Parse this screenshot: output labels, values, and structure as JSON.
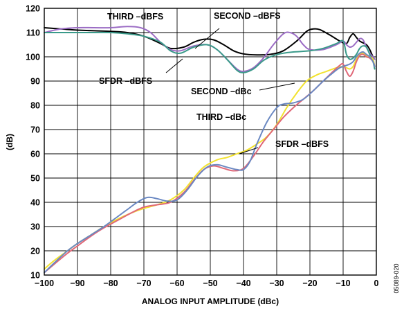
{
  "chart_data": {
    "type": "line",
    "xlabel": "ANALOG INPUT AMPLITUDE (dBc)",
    "ylabel": "(dB)",
    "xlim": [
      -100,
      0
    ],
    "ylim": [
      10,
      120
    ],
    "xticks": [
      "−100",
      "−90",
      "−80",
      "−70",
      "−60",
      "−50",
      "−40",
      "−30",
      "−20",
      "−10",
      "0"
    ],
    "yticks": [
      "10",
      "20",
      "30",
      "40",
      "50",
      "60",
      "70",
      "80",
      "90",
      "100",
      "110",
      "120"
    ],
    "grid": true,
    "figure_id": "05089-020",
    "series": [
      {
        "key": "second_dbfs",
        "color": "#000000",
        "points": [
          [
            -100,
            112
          ],
          [
            -95,
            111.5
          ],
          [
            -90,
            111
          ],
          [
            -80,
            110.5
          ],
          [
            -75,
            110
          ],
          [
            -70,
            108.5
          ],
          [
            -65,
            105.5
          ],
          [
            -62,
            103.5
          ],
          [
            -58,
            104
          ],
          [
            -55,
            106
          ],
          [
            -52,
            107.2
          ],
          [
            -49,
            107
          ],
          [
            -46,
            105
          ],
          [
            -43,
            102.5
          ],
          [
            -40,
            101.2
          ],
          [
            -36,
            100.8
          ],
          [
            -32,
            101
          ],
          [
            -28,
            102.5
          ],
          [
            -24,
            106.5
          ],
          [
            -21,
            110.5
          ],
          [
            -19,
            111.5
          ],
          [
            -17,
            111.2
          ],
          [
            -14,
            109
          ],
          [
            -11,
            106.5
          ],
          [
            -9,
            105.5
          ],
          [
            -8,
            108
          ],
          [
            -7,
            109.5
          ],
          [
            -6,
            108
          ],
          [
            -5,
            106.5
          ],
          [
            -3,
            105
          ],
          [
            -2,
            103
          ],
          [
            -1,
            100
          ],
          [
            -0.5,
            99
          ]
        ]
      },
      {
        "key": "third_dbfs",
        "color": "#9b6cc4",
        "points": [
          [
            -100,
            110
          ],
          [
            -95,
            111.5
          ],
          [
            -90,
            112
          ],
          [
            -85,
            112
          ],
          [
            -80,
            112
          ],
          [
            -75,
            112.5
          ],
          [
            -71,
            112
          ],
          [
            -68,
            110
          ],
          [
            -65,
            106
          ],
          [
            -62,
            103
          ],
          [
            -59,
            102.5
          ],
          [
            -55,
            104.5
          ],
          [
            -51,
            105
          ],
          [
            -48,
            103
          ],
          [
            -45,
            99
          ],
          [
            -42,
            95
          ],
          [
            -40,
            94
          ],
          [
            -37,
            95.5
          ],
          [
            -34,
            99.5
          ],
          [
            -31,
            105
          ],
          [
            -28,
            109.5
          ],
          [
            -26,
            110
          ],
          [
            -24,
            108.5
          ],
          [
            -22,
            105
          ],
          [
            -20,
            103
          ],
          [
            -16,
            103
          ],
          [
            -12,
            105
          ],
          [
            -10,
            106.5
          ],
          [
            -9,
            105
          ],
          [
            -8,
            104
          ],
          [
            -7,
            104.5
          ],
          [
            -6,
            106
          ],
          [
            -5,
            107.5
          ],
          [
            -4,
            107
          ],
          [
            -3,
            104
          ],
          [
            -2,
            101.5
          ],
          [
            -1,
            100
          ],
          [
            -0.5,
            99
          ]
        ]
      },
      {
        "key": "sfdr_dbfs",
        "color": "#3a9a8a",
        "points": [
          [
            -100,
            110
          ],
          [
            -95,
            110
          ],
          [
            -90,
            110
          ],
          [
            -85,
            110
          ],
          [
            -80,
            110
          ],
          [
            -75,
            109.5
          ],
          [
            -70,
            108.5
          ],
          [
            -65,
            106
          ],
          [
            -62,
            102.5
          ],
          [
            -59,
            101.5
          ],
          [
            -55,
            104
          ],
          [
            -51,
            105
          ],
          [
            -48,
            103
          ],
          [
            -45,
            99
          ],
          [
            -42,
            94.5
          ],
          [
            -40,
            93.5
          ],
          [
            -37,
            95
          ],
          [
            -34,
            98.5
          ],
          [
            -31,
            100.5
          ],
          [
            -28,
            101.5
          ],
          [
            -25,
            102
          ],
          [
            -20,
            102.5
          ],
          [
            -16,
            103.5
          ],
          [
            -12,
            105.5
          ],
          [
            -10,
            106.5
          ],
          [
            -9,
            101
          ],
          [
            -8,
            99
          ],
          [
            -7,
            99.5
          ],
          [
            -6,
            101
          ],
          [
            -5,
            103.5
          ],
          [
            -4,
            104.5
          ],
          [
            -3,
            104
          ],
          [
            -2,
            101
          ],
          [
            -1,
            98
          ],
          [
            -0.5,
            95
          ]
        ]
      },
      {
        "key": "second_dbc",
        "color": "#f2e22e",
        "points": [
          [
            -100,
            12.5
          ],
          [
            -97,
            16
          ],
          [
            -93,
            20
          ],
          [
            -90,
            23
          ],
          [
            -86,
            26.5
          ],
          [
            -82,
            30
          ],
          [
            -78,
            33
          ],
          [
            -74,
            35.5
          ],
          [
            -70,
            37.5
          ],
          [
            -66,
            39
          ],
          [
            -62,
            41
          ],
          [
            -58,
            45
          ],
          [
            -55,
            50
          ],
          [
            -52,
            54.5
          ],
          [
            -48,
            57.5
          ],
          [
            -45,
            58.5
          ],
          [
            -42,
            60
          ],
          [
            -39,
            61.5
          ],
          [
            -36,
            64
          ],
          [
            -33,
            67
          ],
          [
            -30,
            72
          ],
          [
            -27,
            79
          ],
          [
            -24,
            85
          ],
          [
            -21,
            90
          ],
          [
            -18,
            92.5
          ],
          [
            -15,
            94
          ],
          [
            -12,
            95.5
          ],
          [
            -10,
            96
          ],
          [
            -9,
            95.5
          ],
          [
            -8,
            95
          ],
          [
            -7,
            96
          ],
          [
            -6,
            99
          ],
          [
            -5,
            101
          ],
          [
            -4,
            101.5
          ],
          [
            -3,
            100.5
          ],
          [
            -2,
            100
          ],
          [
            -1,
            99
          ],
          [
            -0.5,
            96
          ]
        ]
      },
      {
        "key": "third_dbc",
        "color": "#e06878",
        "points": [
          [
            -100,
            11
          ],
          [
            -97,
            14.5
          ],
          [
            -93,
            19
          ],
          [
            -90,
            22
          ],
          [
            -86,
            26
          ],
          [
            -82,
            29.5
          ],
          [
            -78,
            32.5
          ],
          [
            -74,
            35.5
          ],
          [
            -70,
            38
          ],
          [
            -66,
            39
          ],
          [
            -62,
            40
          ],
          [
            -58,
            44
          ],
          [
            -55,
            49
          ],
          [
            -52,
            53.5
          ],
          [
            -49,
            55
          ],
          [
            -46,
            54
          ],
          [
            -43,
            53
          ],
          [
            -40,
            54
          ],
          [
            -37,
            59
          ],
          [
            -34,
            65
          ],
          [
            -31,
            70
          ],
          [
            -28,
            75
          ],
          [
            -25,
            79
          ],
          [
            -22,
            82.5
          ],
          [
            -19,
            86
          ],
          [
            -16,
            90
          ],
          [
            -13,
            94
          ],
          [
            -11,
            96.5
          ],
          [
            -10,
            97
          ],
          [
            -9,
            94
          ],
          [
            -8,
            92
          ],
          [
            -7,
            94
          ],
          [
            -6,
            98
          ],
          [
            -5,
            100.5
          ],
          [
            -4,
            101
          ],
          [
            -3,
            100
          ],
          [
            -2,
            99.5
          ],
          [
            -1,
            98
          ],
          [
            -0.5,
            96
          ]
        ]
      },
      {
        "key": "sfdr_dbfs_lower",
        "color": "#6a88c2",
        "points": [
          [
            -100,
            11
          ],
          [
            -97,
            15
          ],
          [
            -93,
            20
          ],
          [
            -90,
            23
          ],
          [
            -86,
            26.5
          ],
          [
            -82,
            30
          ],
          [
            -78,
            34
          ],
          [
            -75,
            37
          ],
          [
            -72,
            40
          ],
          [
            -69,
            42
          ],
          [
            -66,
            41.5
          ],
          [
            -63,
            40.5
          ],
          [
            -60,
            41
          ],
          [
            -57,
            45
          ],
          [
            -54,
            50.5
          ],
          [
            -51,
            54.5
          ],
          [
            -48,
            55.5
          ],
          [
            -45,
            54.5
          ],
          [
            -42,
            53.5
          ],
          [
            -40,
            53.5
          ],
          [
            -38,
            57
          ],
          [
            -36,
            64
          ],
          [
            -33,
            73
          ],
          [
            -30,
            79
          ],
          [
            -28,
            80.5
          ],
          [
            -25,
            81
          ],
          [
            -22,
            82.5
          ],
          [
            -19,
            86
          ],
          [
            -16,
            90
          ],
          [
            -13,
            93.5
          ],
          [
            -11,
            95.5
          ],
          [
            -10,
            96
          ],
          [
            -9,
            96.5
          ],
          [
            -8,
            97
          ],
          [
            -7,
            98
          ],
          [
            -6,
            100
          ],
          [
            -5,
            101.5
          ],
          [
            -4,
            102
          ],
          [
            -3,
            101
          ],
          [
            -2,
            100
          ],
          [
            -1,
            98
          ],
          [
            -0.5,
            96
          ]
        ]
      }
    ],
    "annotations": [
      {
        "text": "THIRD –dBFS"
      },
      {
        "text": "SECOND –dBFS"
      },
      {
        "text": "SFDR –dBFS"
      },
      {
        "text": "SECOND –dBc"
      },
      {
        "text": "THIRD –dBc"
      },
      {
        "text": "SFDR –dBFS"
      }
    ]
  }
}
